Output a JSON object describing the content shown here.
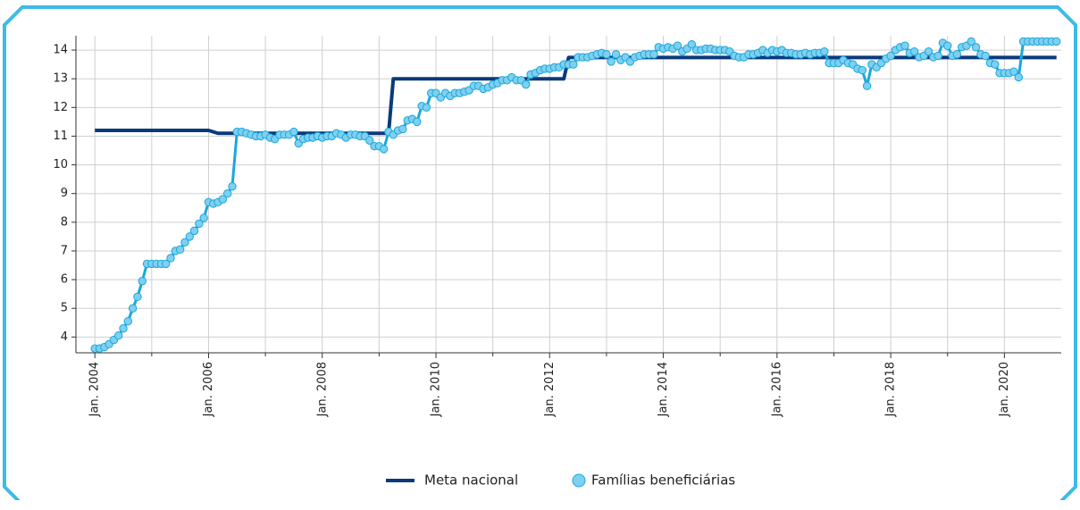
{
  "chart_data": {
    "type": "line",
    "x": [
      "2004-01",
      "2004-02",
      "2004-03",
      "2004-04",
      "2004-05",
      "2004-06",
      "2004-07",
      "2004-08",
      "2004-09",
      "2004-10",
      "2004-11",
      "2004-12",
      "2005-01",
      "2005-02",
      "2005-03",
      "2005-04",
      "2005-05",
      "2005-06",
      "2005-07",
      "2005-08",
      "2005-09",
      "2005-10",
      "2005-11",
      "2005-12",
      "2006-01",
      "2006-02",
      "2006-03",
      "2006-04",
      "2006-05",
      "2006-06",
      "2006-07",
      "2006-08",
      "2006-09",
      "2006-10",
      "2006-11",
      "2006-12",
      "2007-01",
      "2007-02",
      "2007-03",
      "2007-04",
      "2007-05",
      "2007-06",
      "2007-07",
      "2007-08",
      "2007-09",
      "2007-10",
      "2007-11",
      "2007-12",
      "2008-01",
      "2008-02",
      "2008-03",
      "2008-04",
      "2008-05",
      "2008-06",
      "2008-07",
      "2008-08",
      "2008-09",
      "2008-10",
      "2008-11",
      "2008-12",
      "2009-01",
      "2009-02",
      "2009-03",
      "2009-04",
      "2009-05",
      "2009-06",
      "2009-07",
      "2009-08",
      "2009-09",
      "2009-10",
      "2009-11",
      "2009-12",
      "2010-01",
      "2010-02",
      "2010-03",
      "2010-04",
      "2010-05",
      "2010-06",
      "2010-07",
      "2010-08",
      "2010-09",
      "2010-10",
      "2010-11",
      "2010-12",
      "2011-01",
      "2011-02",
      "2011-03",
      "2011-04",
      "2011-05",
      "2011-06",
      "2011-07",
      "2011-08",
      "2011-09",
      "2011-10",
      "2011-11",
      "2011-12",
      "2012-01",
      "2012-02",
      "2012-03",
      "2012-04",
      "2012-05",
      "2012-06",
      "2012-07",
      "2012-08",
      "2012-09",
      "2012-10",
      "2012-11",
      "2012-12",
      "2013-01",
      "2013-02",
      "2013-03",
      "2013-04",
      "2013-05",
      "2013-06",
      "2013-07",
      "2013-08",
      "2013-09",
      "2013-10",
      "2013-11",
      "2013-12",
      "2014-01",
      "2014-02",
      "2014-03",
      "2014-04",
      "2014-05",
      "2014-06",
      "2014-07",
      "2014-08",
      "2014-09",
      "2014-10",
      "2014-11",
      "2014-12",
      "2015-01",
      "2015-02",
      "2015-03",
      "2015-04",
      "2015-05",
      "2015-06",
      "2015-07",
      "2015-08",
      "2015-09",
      "2015-10",
      "2015-11",
      "2015-12",
      "2016-01",
      "2016-02",
      "2016-03",
      "2016-04",
      "2016-05",
      "2016-06",
      "2016-07",
      "2016-08",
      "2016-09",
      "2016-10",
      "2016-11",
      "2016-12",
      "2017-01",
      "2017-02",
      "2017-03",
      "2017-04",
      "2017-05",
      "2017-06",
      "2017-07",
      "2017-08",
      "2017-09",
      "2017-10",
      "2017-11",
      "2017-12",
      "2018-01",
      "2018-02",
      "2018-03",
      "2018-04",
      "2018-05",
      "2018-06",
      "2018-07",
      "2018-08",
      "2018-09",
      "2018-10",
      "2018-11",
      "2018-12",
      "2019-01",
      "2019-02",
      "2019-03",
      "2019-04",
      "2019-05",
      "2019-06",
      "2019-07",
      "2019-08",
      "2019-09",
      "2019-10",
      "2019-11",
      "2019-12",
      "2020-01",
      "2020-02",
      "2020-03",
      "2020-04",
      "2020-05",
      "2020-06",
      "2020-07",
      "2020-08",
      "2020-09",
      "2020-10",
      "2020-11",
      "2020-12"
    ],
    "series": [
      {
        "name": "Meta nacional",
        "color": "#0b3a7c",
        "values": [
          11.2,
          11.2,
          11.2,
          11.2,
          11.2,
          11.2,
          11.2,
          11.2,
          11.2,
          11.2,
          11.2,
          11.2,
          11.2,
          11.2,
          11.2,
          11.2,
          11.2,
          11.2,
          11.2,
          11.2,
          11.2,
          11.2,
          11.2,
          11.2,
          11.2,
          11.15,
          11.1,
          11.1,
          11.1,
          11.1,
          11.1,
          11.1,
          11.1,
          11.1,
          11.1,
          11.1,
          11.1,
          11.1,
          11.1,
          11.1,
          11.1,
          11.1,
          11.1,
          11.1,
          11.1,
          11.1,
          11.1,
          11.1,
          11.1,
          11.1,
          11.1,
          11.1,
          11.1,
          11.1,
          11.1,
          11.1,
          11.1,
          11.1,
          11.1,
          11.1,
          11.1,
          11.1,
          11.1,
          13,
          13,
          13,
          13,
          13,
          13,
          13,
          13,
          13,
          13,
          13,
          13,
          13,
          13,
          13,
          13,
          13,
          13,
          13,
          13,
          13,
          13,
          13,
          13,
          13,
          13,
          13,
          13,
          13,
          13,
          13,
          13,
          13,
          13,
          13,
          13,
          13,
          13.74,
          13.74,
          13.74,
          13.74,
          13.74,
          13.74,
          13.74,
          13.74,
          13.74,
          13.74,
          13.74,
          13.74,
          13.74,
          13.74,
          13.74,
          13.74,
          13.74,
          13.74,
          13.74,
          13.74,
          13.74,
          13.74,
          13.74,
          13.74,
          13.74,
          13.74,
          13.74,
          13.74,
          13.74,
          13.74,
          13.74,
          13.74,
          13.74,
          13.74,
          13.74,
          13.74,
          13.74,
          13.74,
          13.74,
          13.74,
          13.74,
          13.74,
          13.74,
          13.74,
          13.74,
          13.74,
          13.74,
          13.74,
          13.74,
          13.74,
          13.74,
          13.74,
          13.74,
          13.74,
          13.74,
          13.74,
          13.74,
          13.74,
          13.74,
          13.74,
          13.74,
          13.74,
          13.74,
          13.74,
          13.74,
          13.74,
          13.74,
          13.74,
          13.74,
          13.74,
          13.74,
          13.74,
          13.74,
          13.74,
          13.74,
          13.74,
          13.74,
          13.74,
          13.74,
          13.74,
          13.74,
          13.74,
          13.74,
          13.74,
          13.74,
          13.74,
          13.74,
          13.74,
          13.74,
          13.74,
          13.74,
          13.74,
          13.74,
          13.74,
          13.74,
          13.74,
          13.74,
          13.74,
          13.74,
          13.74,
          13.74,
          13.74,
          13.74,
          13.74
        ]
      },
      {
        "name": "Famílias beneficiárias",
        "color": "#1aa7dc",
        "marker_color": "#7fd0f0",
        "values": [
          3.6,
          3.6,
          3.65,
          3.75,
          3.9,
          4.05,
          4.3,
          4.55,
          5.0,
          5.4,
          5.95,
          6.55,
          6.55,
          6.55,
          6.55,
          6.55,
          6.75,
          7.0,
          7.05,
          7.3,
          7.5,
          7.7,
          7.95,
          8.15,
          8.7,
          8.65,
          8.7,
          8.8,
          9.0,
          9.25,
          11.15,
          11.15,
          11.1,
          11.05,
          11.0,
          11.0,
          11.05,
          10.95,
          10.9,
          11.05,
          11.05,
          11.05,
          11.15,
          10.75,
          10.9,
          10.95,
          10.95,
          11.0,
          10.95,
          11.0,
          11.0,
          11.1,
          11.05,
          10.95,
          11.05,
          11.05,
          11.0,
          11.0,
          10.85,
          10.65,
          10.65,
          10.55,
          11.15,
          11.05,
          11.2,
          11.25,
          11.55,
          11.6,
          11.5,
          12.05,
          12.0,
          12.5,
          12.5,
          12.35,
          12.5,
          12.4,
          12.5,
          12.5,
          12.55,
          12.6,
          12.75,
          12.75,
          12.65,
          12.7,
          12.8,
          12.85,
          12.95,
          12.95,
          13.05,
          12.95,
          12.95,
          12.8,
          13.15,
          13.2,
          13.3,
          13.35,
          13.35,
          13.4,
          13.4,
          13.5,
          13.5,
          13.5,
          13.75,
          13.75,
          13.75,
          13.8,
          13.85,
          13.9,
          13.85,
          13.6,
          13.85,
          13.65,
          13.75,
          13.6,
          13.75,
          13.8,
          13.85,
          13.85,
          13.85,
          14.1,
          14.05,
          14.1,
          14.05,
          14.15,
          13.95,
          14.05,
          14.2,
          14.0,
          14.0,
          14.05,
          14.05,
          14.0,
          14.0,
          14.0,
          13.95,
          13.8,
          13.75,
          13.75,
          13.85,
          13.85,
          13.9,
          14.0,
          13.9,
          14.0,
          13.95,
          14.0,
          13.9,
          13.9,
          13.85,
          13.85,
          13.9,
          13.85,
          13.9,
          13.9,
          13.95,
          13.55,
          13.55,
          13.55,
          13.65,
          13.55,
          13.5,
          13.35,
          13.3,
          12.75,
          13.5,
          13.4,
          13.55,
          13.7,
          13.8,
          14.0,
          14.1,
          14.15,
          13.9,
          13.95,
          13.75,
          13.8,
          13.95,
          13.75,
          13.8,
          14.25,
          14.15,
          13.8,
          13.85,
          14.1,
          14.15,
          14.3,
          14.1,
          13.85,
          13.8,
          13.55,
          13.5,
          13.2,
          13.2,
          13.2,
          13.25,
          13.05,
          14.3,
          14.3,
          14.3,
          14.3,
          14.3,
          14.3,
          14.3,
          14.3
        ]
      }
    ],
    "xlim": [
      "2003-09",
      "2021-01"
    ],
    "xticks": [
      {
        "value": "2004-01",
        "label": "Jan. 2004"
      },
      {
        "value": "2006-01",
        "label": "Jan. 2006"
      },
      {
        "value": "2008-01",
        "label": "Jan. 2008"
      },
      {
        "value": "2010-01",
        "label": "Jan. 2010"
      },
      {
        "value": "2012-01",
        "label": "Jan. 2012"
      },
      {
        "value": "2014-01",
        "label": "Jan. 2014"
      },
      {
        "value": "2016-01",
        "label": "Jan. 2016"
      },
      {
        "value": "2018-01",
        "label": "Jan. 2018"
      },
      {
        "value": "2020-01",
        "label": "Jan. 2020"
      }
    ],
    "x_minor_ticks": [
      "2005-01",
      "2007-01",
      "2009-01",
      "2011-01",
      "2013-01",
      "2015-01",
      "2017-01",
      "2019-01"
    ],
    "ylim": [
      3.45,
      14.5
    ],
    "yticks": [
      4,
      5,
      6,
      7,
      8,
      9,
      10,
      11,
      12,
      13,
      14
    ],
    "grid": true,
    "legend": "bottom"
  }
}
